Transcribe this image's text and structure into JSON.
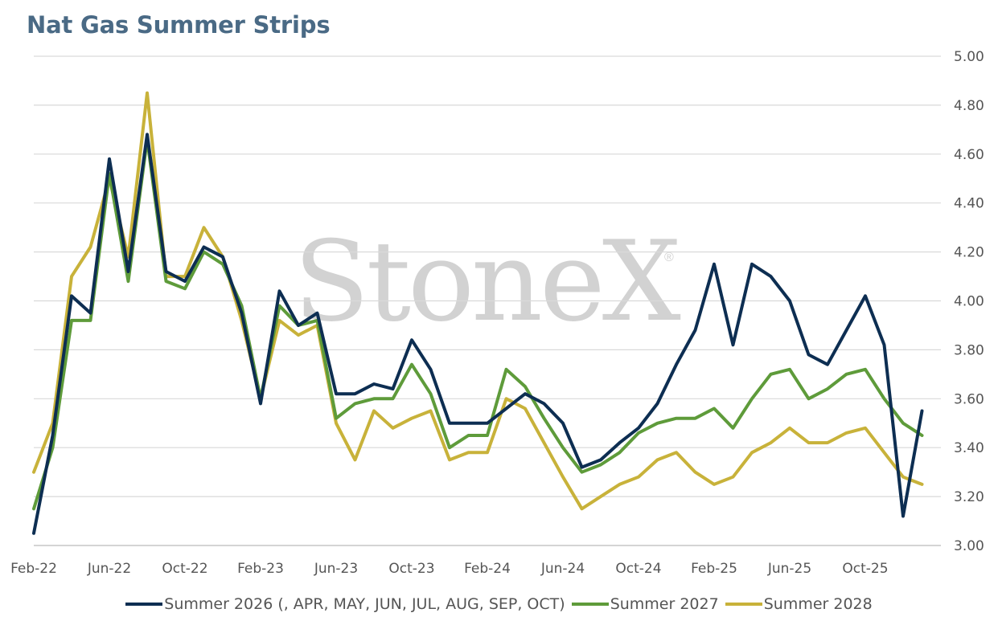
{
  "title": "Nat Gas Summer Strips",
  "watermark": {
    "text": "StoneX",
    "mark": "®"
  },
  "chart_data": {
    "type": "line",
    "ylim": [
      3.0,
      5.0
    ],
    "yticks": [
      "5.00",
      "4.80",
      "4.60",
      "4.40",
      "4.20",
      "4.00",
      "3.80",
      "3.60",
      "3.40",
      "3.20",
      "3.00"
    ],
    "xticks": [
      "Feb-22",
      "Jun-22",
      "Oct-22",
      "Feb-23",
      "Jun-23",
      "Oct-23",
      "Feb-24",
      "Jun-24",
      "Oct-24",
      "Feb-25",
      "Jun-25",
      "Oct-25"
    ],
    "grid": true,
    "legend_position": "bottom",
    "series": [
      {
        "name": "Summer 2026 (, APR, MAY, JUN, JUL, AUG, SEP, OCT)",
        "color": "#0d2e52",
        "points": [
          [
            "Feb-22",
            3.05
          ],
          [
            "Mar-22",
            3.45
          ],
          [
            "Apr-22",
            4.02
          ],
          [
            "May-22",
            3.95
          ],
          [
            "Jun-22",
            4.58
          ],
          [
            "Jul-22",
            4.12
          ],
          [
            "Aug-22",
            4.68
          ],
          [
            "Sep-22",
            4.12
          ],
          [
            "Oct-22",
            4.08
          ],
          [
            "Nov-22",
            4.22
          ],
          [
            "Dec-22",
            4.18
          ],
          [
            "Jan-23",
            3.95
          ],
          [
            "Feb-23",
            3.58
          ],
          [
            "Mar-23",
            4.04
          ],
          [
            "Apr-23",
            3.9
          ],
          [
            "May-23",
            3.95
          ],
          [
            "Jun-23",
            3.62
          ],
          [
            "Jul-23",
            3.62
          ],
          [
            "Aug-23",
            3.66
          ],
          [
            "Sep-23",
            3.64
          ],
          [
            "Oct-23",
            3.84
          ],
          [
            "Nov-23",
            3.72
          ],
          [
            "Dec-23",
            3.5
          ],
          [
            "Jan-24",
            3.5
          ],
          [
            "Feb-24",
            3.5
          ],
          [
            "Mar-24",
            3.56
          ],
          [
            "Apr-24",
            3.62
          ],
          [
            "May-24",
            3.58
          ],
          [
            "Jun-24",
            3.5
          ],
          [
            "Jul-24",
            3.32
          ],
          [
            "Aug-24",
            3.35
          ],
          [
            "Sep-24",
            3.42
          ],
          [
            "Oct-24",
            3.48
          ],
          [
            "Nov-24",
            3.58
          ],
          [
            "Dec-24",
            3.74
          ],
          [
            "Jan-25",
            3.88
          ],
          [
            "Feb-25",
            4.15
          ],
          [
            "Mar-25",
            3.82
          ],
          [
            "Apr-25",
            4.15
          ],
          [
            "May-25",
            4.1
          ],
          [
            "Jun-25",
            4.0
          ],
          [
            "Jul-25",
            3.78
          ],
          [
            "Aug-25",
            3.74
          ],
          [
            "Sep-25",
            3.88
          ],
          [
            "Oct-25",
            4.02
          ],
          [
            "Nov-25",
            3.82
          ],
          [
            "Dec-25",
            3.12
          ],
          [
            "Jan-26",
            3.55
          ]
        ]
      },
      {
        "name": "Summer 2027",
        "color": "#5e9b3a",
        "points": [
          [
            "Feb-22",
            3.15
          ],
          [
            "Mar-22",
            3.4
          ],
          [
            "Apr-22",
            3.92
          ],
          [
            "May-22",
            3.92
          ],
          [
            "Jun-22",
            4.52
          ],
          [
            "Jul-22",
            4.08
          ],
          [
            "Aug-22",
            4.66
          ],
          [
            "Sep-22",
            4.08
          ],
          [
            "Oct-22",
            4.05
          ],
          [
            "Nov-22",
            4.2
          ],
          [
            "Dec-22",
            4.15
          ],
          [
            "Jan-23",
            3.98
          ],
          [
            "Feb-23",
            3.6
          ],
          [
            "Mar-23",
            3.98
          ],
          [
            "Apr-23",
            3.9
          ],
          [
            "May-23",
            3.92
          ],
          [
            "Jun-23",
            3.52
          ],
          [
            "Jul-23",
            3.58
          ],
          [
            "Aug-23",
            3.6
          ],
          [
            "Sep-23",
            3.6
          ],
          [
            "Oct-23",
            3.74
          ],
          [
            "Nov-23",
            3.62
          ],
          [
            "Dec-23",
            3.4
          ],
          [
            "Jan-24",
            3.45
          ],
          [
            "Feb-24",
            3.45
          ],
          [
            "Mar-24",
            3.72
          ],
          [
            "Apr-24",
            3.65
          ],
          [
            "May-24",
            3.52
          ],
          [
            "Jun-24",
            3.4
          ],
          [
            "Jul-24",
            3.3
          ],
          [
            "Aug-24",
            3.33
          ],
          [
            "Sep-24",
            3.38
          ],
          [
            "Oct-24",
            3.46
          ],
          [
            "Nov-24",
            3.5
          ],
          [
            "Dec-24",
            3.52
          ],
          [
            "Jan-25",
            3.52
          ],
          [
            "Feb-25",
            3.56
          ],
          [
            "Mar-25",
            3.48
          ],
          [
            "Apr-25",
            3.6
          ],
          [
            "May-25",
            3.7
          ],
          [
            "Jun-25",
            3.72
          ],
          [
            "Jul-25",
            3.6
          ],
          [
            "Aug-25",
            3.64
          ],
          [
            "Sep-25",
            3.7
          ],
          [
            "Oct-25",
            3.72
          ],
          [
            "Nov-25",
            3.6
          ],
          [
            "Dec-25",
            3.5
          ],
          [
            "Jan-26",
            3.45
          ]
        ]
      },
      {
        "name": "Summer 2028",
        "color": "#c8b23a",
        "points": [
          [
            "Feb-22",
            3.3
          ],
          [
            "Mar-22",
            3.5
          ],
          [
            "Apr-22",
            4.1
          ],
          [
            "May-22",
            4.22
          ],
          [
            "Jun-22",
            4.5
          ],
          [
            "Jul-22",
            4.18
          ],
          [
            "Aug-22",
            4.85
          ],
          [
            "Sep-22",
            4.1
          ],
          [
            "Oct-22",
            4.1
          ],
          [
            "Nov-22",
            4.3
          ],
          [
            "Dec-22",
            4.18
          ],
          [
            "Jan-23",
            3.92
          ],
          [
            "Feb-23",
            3.6
          ],
          [
            "Mar-23",
            3.92
          ],
          [
            "Apr-23",
            3.86
          ],
          [
            "May-23",
            3.9
          ],
          [
            "Jun-23",
            3.5
          ],
          [
            "Jul-23",
            3.35
          ],
          [
            "Aug-23",
            3.55
          ],
          [
            "Sep-23",
            3.48
          ],
          [
            "Oct-23",
            3.52
          ],
          [
            "Nov-23",
            3.55
          ],
          [
            "Dec-23",
            3.35
          ],
          [
            "Jan-24",
            3.38
          ],
          [
            "Feb-24",
            3.38
          ],
          [
            "Mar-24",
            3.6
          ],
          [
            "Apr-24",
            3.56
          ],
          [
            "May-24",
            3.42
          ],
          [
            "Jun-24",
            3.28
          ],
          [
            "Jul-24",
            3.15
          ],
          [
            "Aug-24",
            3.2
          ],
          [
            "Sep-24",
            3.25
          ],
          [
            "Oct-24",
            3.28
          ],
          [
            "Nov-24",
            3.35
          ],
          [
            "Dec-24",
            3.38
          ],
          [
            "Jan-25",
            3.3
          ],
          [
            "Feb-25",
            3.25
          ],
          [
            "Mar-25",
            3.28
          ],
          [
            "Apr-25",
            3.38
          ],
          [
            "May-25",
            3.42
          ],
          [
            "Jun-25",
            3.48
          ],
          [
            "Jul-25",
            3.42
          ],
          [
            "Aug-25",
            3.42
          ],
          [
            "Sep-25",
            3.46
          ],
          [
            "Oct-25",
            3.48
          ],
          [
            "Nov-25",
            3.38
          ],
          [
            "Dec-25",
            3.28
          ],
          [
            "Jan-26",
            3.25
          ]
        ]
      }
    ]
  }
}
